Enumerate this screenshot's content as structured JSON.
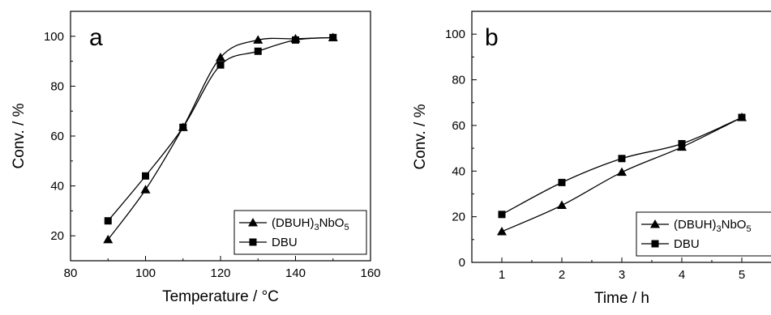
{
  "chart_data": [
    {
      "type": "line",
      "panel_label": "a",
      "xlabel": "Temperature / °C",
      "ylabel": "Conv. / %",
      "xlim": [
        80,
        160
      ],
      "ylim": [
        10,
        110
      ],
      "xticks": [
        80,
        100,
        120,
        140,
        160
      ],
      "yticks": [
        20,
        40,
        60,
        80,
        100
      ],
      "legend_position": "bottom-right",
      "series": [
        {
          "name": "(DBUH)3NbO5",
          "name_main": "(DBUH)",
          "name_sub1": "3",
          "name_mid": "NbO",
          "name_sub2": "5",
          "marker": "triangle",
          "x": [
            90,
            100,
            110,
            120,
            130,
            140,
            150
          ],
          "values": [
            18.5,
            38.5,
            63.5,
            91.5,
            98.5,
            99,
            99.5
          ]
        },
        {
          "name": "DBU",
          "marker": "square",
          "x": [
            90,
            100,
            110,
            120,
            130,
            140,
            150
          ],
          "values": [
            26,
            44,
            63.5,
            88.5,
            94,
            98.5,
            99.5
          ]
        }
      ]
    },
    {
      "type": "line",
      "panel_label": "b",
      "xlabel": "Time / h",
      "ylabel": "Conv. / %",
      "xlim": [
        0.5,
        5.5
      ],
      "ylim": [
        0,
        110
      ],
      "xticks": [
        1,
        2,
        3,
        4,
        5
      ],
      "yticks": [
        0,
        20,
        40,
        60,
        80,
        100
      ],
      "legend_position": "bottom-right",
      "series": [
        {
          "name": "(DBUH)3NbO5",
          "name_main": "(DBUH)",
          "name_sub1": "3",
          "name_mid": "NbO",
          "name_sub2": "5",
          "marker": "triangle",
          "x": [
            1,
            2,
            3,
            4,
            5
          ],
          "values": [
            13.5,
            25,
            39.5,
            50.5,
            63.5
          ]
        },
        {
          "name": "DBU",
          "marker": "square",
          "x": [
            1,
            2,
            3,
            4,
            5
          ],
          "values": [
            21,
            35,
            45.5,
            52,
            63.5
          ]
        }
      ]
    }
  ]
}
